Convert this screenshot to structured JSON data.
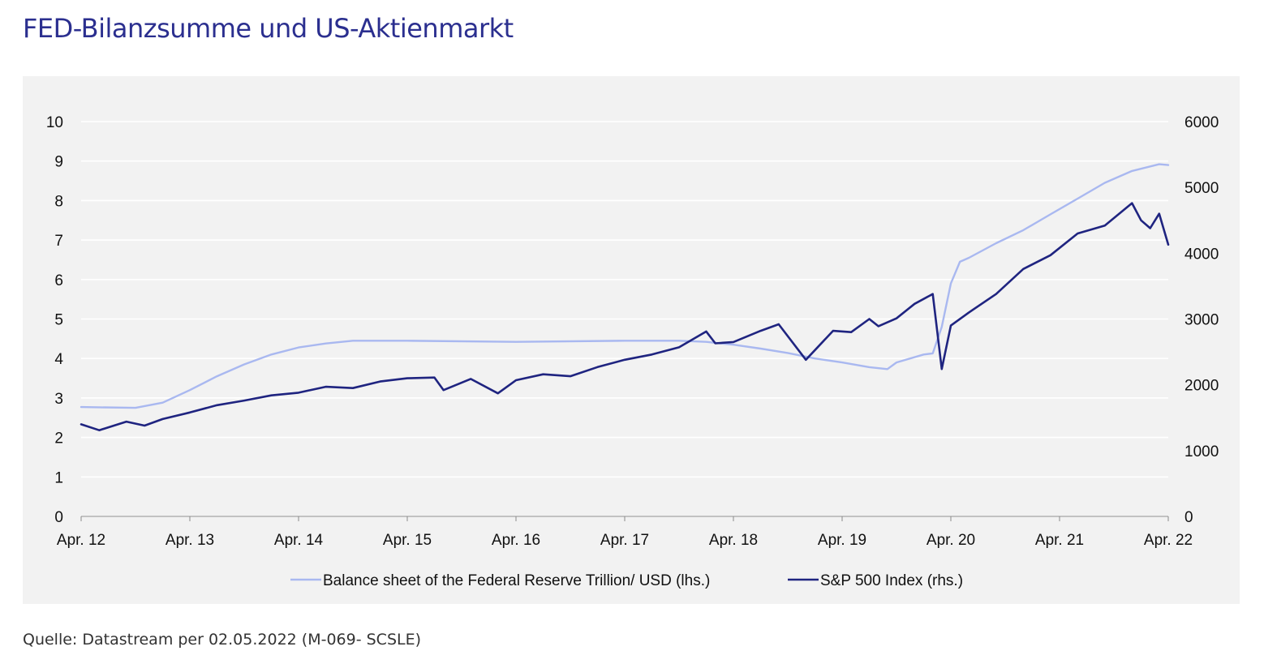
{
  "title": "FED-Bilanzsumme und US-Aktienmarkt",
  "source": "Quelle: Datastream per 02.05.2022 (M-069- SCSLE)",
  "chart_data": {
    "type": "line",
    "x_tick_labels": [
      "Apr. 12",
      "Apr. 13",
      "Apr. 14",
      "Apr. 15",
      "Apr. 16",
      "Apr. 17",
      "Apr. 18",
      "Apr. 19",
      "Apr. 20",
      "Apr. 21",
      "Apr. 22"
    ],
    "y_left": {
      "label": "",
      "min": 0,
      "max": 10,
      "ticks": [
        "0",
        "1",
        "2",
        "3",
        "4",
        "5",
        "6",
        "7",
        "8",
        "9",
        "10"
      ]
    },
    "y_right": {
      "label": "",
      "min": 0,
      "max": 6000,
      "ticks": [
        "0",
        "1000",
        "2000",
        "3000",
        "4000",
        "5000",
        "6000"
      ]
    },
    "grid": true,
    "legend_position": "bottom",
    "series": [
      {
        "name": "Balance sheet of the Federal Reserve Trillion/ USD (lhs.)",
        "axis": "left",
        "color": "#a9b8f0",
        "x": [
          "2012-04",
          "2012-10",
          "2013-01",
          "2013-04",
          "2013-07",
          "2013-10",
          "2014-01",
          "2014-04",
          "2014-07",
          "2014-10",
          "2015-04",
          "2016-04",
          "2017-04",
          "2017-10",
          "2018-01",
          "2018-04",
          "2018-07",
          "2018-10",
          "2019-01",
          "2019-04",
          "2019-07",
          "2019-09",
          "2019-10",
          "2020-01",
          "2020-02",
          "2020-03",
          "2020-04",
          "2020-05",
          "2020-06",
          "2020-09",
          "2020-12",
          "2021-03",
          "2021-06",
          "2021-09",
          "2021-12",
          "2022-03",
          "2022-04"
        ],
        "values": [
          2.77,
          2.75,
          2.88,
          3.2,
          3.55,
          3.85,
          4.1,
          4.28,
          4.38,
          4.45,
          4.45,
          4.42,
          4.45,
          4.45,
          4.42,
          4.35,
          4.25,
          4.14,
          4.0,
          3.9,
          3.78,
          3.73,
          3.9,
          4.1,
          4.13,
          4.8,
          5.9,
          6.45,
          6.55,
          6.92,
          7.25,
          7.65,
          8.05,
          8.45,
          8.75,
          8.92,
          8.9
        ]
      },
      {
        "name": "S&P 500 Index (rhs.)",
        "axis": "right",
        "color": "#1f2480",
        "x": [
          "2012-04",
          "2012-06",
          "2012-09",
          "2012-11",
          "2013-01",
          "2013-04",
          "2013-07",
          "2013-10",
          "2014-01",
          "2014-04",
          "2014-07",
          "2014-10",
          "2015-01",
          "2015-04",
          "2015-07",
          "2015-08",
          "2015-11",
          "2016-02",
          "2016-04",
          "2016-07",
          "2016-10",
          "2017-01",
          "2017-04",
          "2017-07",
          "2017-10",
          "2018-01",
          "2018-02",
          "2018-04",
          "2018-07",
          "2018-09",
          "2018-12",
          "2019-03",
          "2019-05",
          "2019-07",
          "2019-08",
          "2019-10",
          "2019-12",
          "2020-02",
          "2020-03",
          "2020-04",
          "2020-06",
          "2020-09",
          "2020-12",
          "2021-03",
          "2021-06",
          "2021-09",
          "2021-12",
          "2022-01",
          "2022-02",
          "2022-03",
          "2022-04"
        ],
        "values": [
          1400,
          1310,
          1440,
          1380,
          1480,
          1580,
          1690,
          1760,
          1840,
          1880,
          1970,
          1950,
          2050,
          2100,
          2110,
          1920,
          2090,
          1870,
          2070,
          2160,
          2130,
          2270,
          2380,
          2460,
          2570,
          2810,
          2630,
          2650,
          2820,
          2920,
          2380,
          2820,
          2800,
          3000,
          2890,
          3010,
          3230,
          3380,
          2240,
          2900,
          3100,
          3380,
          3760,
          3970,
          4300,
          4420,
          4760,
          4500,
          4380,
          4600,
          4130
        ]
      }
    ]
  }
}
